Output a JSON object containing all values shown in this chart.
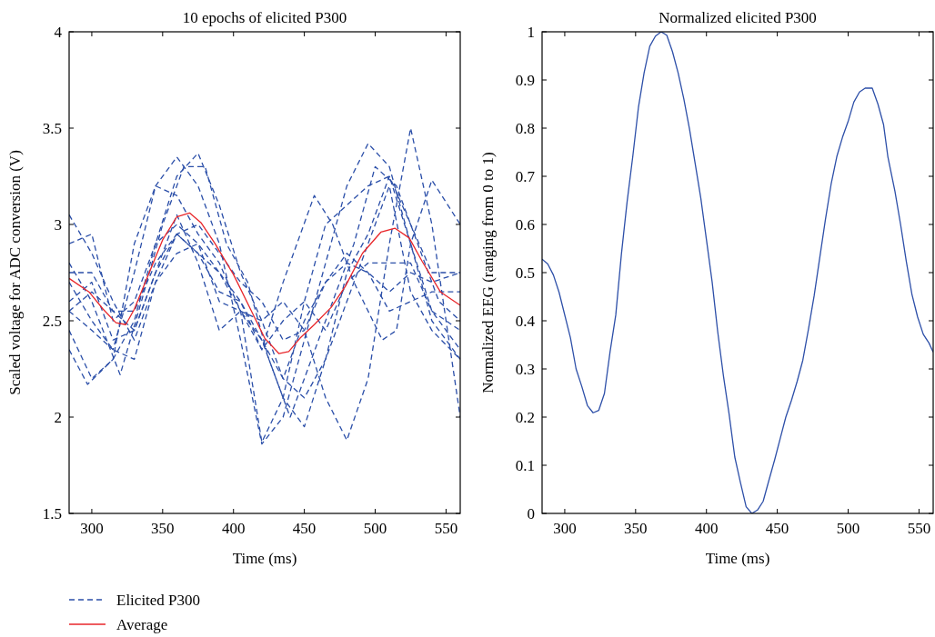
{
  "chart_data": [
    {
      "type": "line",
      "title": "10 epochs of elicited P300",
      "xlabel": "Time (ms)",
      "ylabel": "Scaled voltage for ADC conversion (V)",
      "xlim": [
        284,
        560
      ],
      "ylim": [
        1.5,
        4
      ],
      "xticks": [
        300,
        350,
        400,
        450,
        500,
        550
      ],
      "yticks": [
        1.5,
        2,
        2.5,
        3,
        3.5,
        4
      ],
      "grid": false,
      "legend": "bottom left",
      "series": [
        {
          "name": "Elicited P300",
          "color": "#2a4ea8",
          "line_style": "dashed",
          "x": [
            284,
            300,
            315,
            330,
            345,
            360,
            375,
            390,
            405,
            420,
            435,
            450,
            465,
            480,
            495,
            510,
            525,
            540,
            560
          ],
          "values": [
            2.55,
            2.45,
            2.35,
            2.75,
            3.2,
            3.35,
            3.2,
            2.9,
            2.4,
            1.86,
            2.0,
            2.4,
            2.8,
            3.2,
            3.42,
            3.3,
            2.9,
            2.55,
            2.35
          ]
        },
        {
          "color": "#2a4ea8",
          "line_style": "dashed",
          "x": [
            284,
            300,
            315,
            330,
            345,
            360,
            375,
            390,
            405,
            420,
            435,
            450,
            465,
            480,
            495,
            510,
            525,
            540,
            560
          ],
          "values": [
            2.45,
            2.2,
            2.3,
            2.5,
            2.9,
            3.25,
            3.37,
            3.1,
            2.75,
            2.5,
            2.6,
            2.45,
            2.1,
            1.88,
            2.2,
            2.9,
            3.5,
            3.0,
            2.0
          ]
        },
        {
          "color": "#2a4ea8",
          "line_style": "dashed",
          "x": [
            284,
            297,
            315,
            330,
            345,
            360,
            375,
            390,
            405,
            420,
            435,
            450,
            465,
            480,
            495,
            510,
            525,
            540,
            560
          ],
          "values": [
            2.35,
            2.17,
            2.3,
            2.9,
            3.2,
            3.15,
            2.95,
            2.8,
            2.55,
            1.87,
            2.1,
            2.6,
            3.0,
            3.1,
            3.2,
            3.25,
            2.9,
            2.5,
            2.3
          ]
        },
        {
          "color": "#2a4ea8",
          "line_style": "dashed",
          "x": [
            284,
            300,
            315,
            330,
            345,
            360,
            375,
            390,
            405,
            420,
            435,
            457,
            470,
            485,
            505,
            515,
            525,
            540,
            560
          ],
          "values": [
            2.9,
            2.95,
            2.5,
            2.6,
            2.9,
            3.0,
            2.9,
            2.75,
            2.55,
            2.35,
            2.7,
            3.15,
            3.0,
            2.7,
            2.4,
            2.45,
            2.9,
            3.23,
            3.0
          ]
        },
        {
          "color": "#2a4ea8",
          "line_style": "dashed",
          "x": [
            284,
            300,
            320,
            335,
            350,
            365,
            380,
            395,
            410,
            425,
            440,
            455,
            470,
            485,
            500,
            515,
            530,
            545,
            560
          ],
          "values": [
            2.8,
            2.6,
            2.22,
            2.6,
            3.0,
            3.3,
            3.3,
            2.9,
            2.7,
            2.3,
            2.0,
            2.3,
            2.6,
            2.9,
            3.3,
            3.2,
            2.9,
            2.6,
            2.5
          ]
        },
        {
          "color": "#2a4ea8",
          "line_style": "dashed",
          "x": [
            284,
            300,
            315,
            330,
            345,
            360,
            375,
            390,
            405,
            420,
            435,
            450,
            465,
            480,
            495,
            510,
            525,
            540,
            560
          ],
          "values": [
            3.05,
            2.85,
            2.6,
            2.4,
            2.7,
            2.95,
            2.85,
            2.65,
            2.6,
            2.4,
            2.1,
            1.95,
            2.3,
            2.75,
            2.95,
            3.25,
            3.0,
            2.75,
            2.75
          ]
        },
        {
          "color": "#2a4ea8",
          "line_style": "dashed",
          "x": [
            284,
            300,
            315,
            330,
            345,
            360,
            375,
            390,
            405,
            420,
            435,
            450,
            465,
            480,
            495,
            510,
            525,
            540,
            560
          ],
          "values": [
            2.6,
            2.7,
            2.4,
            2.45,
            2.75,
            2.95,
            3.0,
            2.85,
            2.7,
            2.6,
            2.4,
            2.45,
            2.7,
            2.8,
            2.75,
            2.65,
            2.75,
            2.7,
            2.75
          ]
        },
        {
          "color": "#2a4ea8",
          "line_style": "dashed",
          "x": [
            284,
            300,
            315,
            330,
            345,
            360,
            375,
            390,
            405,
            420,
            435,
            450,
            465,
            480,
            495,
            510,
            525,
            540,
            560
          ],
          "values": [
            2.7,
            2.5,
            2.35,
            2.3,
            2.7,
            2.85,
            2.9,
            2.6,
            2.55,
            2.5,
            2.2,
            2.1,
            2.3,
            2.6,
            2.9,
            3.2,
            2.65,
            2.45,
            2.3
          ]
        },
        {
          "color": "#2a4ea8",
          "line_style": "dashed",
          "x": [
            284,
            300,
            315,
            330,
            345,
            360,
            375,
            390,
            405,
            420,
            435,
            450,
            465,
            480,
            495,
            510,
            525,
            540,
            560
          ],
          "values": [
            2.75,
            2.75,
            2.55,
            2.45,
            2.75,
            3.05,
            2.8,
            2.45,
            2.55,
            2.4,
            2.2,
            2.5,
            2.7,
            2.85,
            2.75,
            2.55,
            2.6,
            2.65,
            2.65
          ]
        },
        {
          "color": "#2a4ea8",
          "line_style": "dashed",
          "x": [
            284,
            300,
            315,
            330,
            345,
            360,
            375,
            390,
            405,
            420,
            435,
            450,
            465,
            480,
            495,
            510,
            525,
            540,
            560
          ],
          "values": [
            2.55,
            2.65,
            2.55,
            2.55,
            2.8,
            2.95,
            2.85,
            2.75,
            2.6,
            2.35,
            2.5,
            2.6,
            2.45,
            2.7,
            2.8,
            2.8,
            2.8,
            2.55,
            2.45
          ]
        },
        {
          "name": "Average",
          "color": "#e8262a",
          "line_style": "solid",
          "x": [
            284,
            298,
            308,
            317,
            324,
            330,
            340,
            350,
            360,
            369,
            377,
            387,
            400,
            412,
            422,
            432,
            439,
            447,
            457,
            469,
            479,
            491,
            504,
            514,
            524,
            533,
            546,
            560
          ],
          "values": [
            2.72,
            2.65,
            2.56,
            2.49,
            2.48,
            2.56,
            2.74,
            2.92,
            3.04,
            3.06,
            3.01,
            2.9,
            2.74,
            2.56,
            2.41,
            2.33,
            2.34,
            2.41,
            2.48,
            2.57,
            2.68,
            2.85,
            2.96,
            2.98,
            2.93,
            2.81,
            2.65,
            2.58
          ]
        }
      ]
    },
    {
      "type": "line",
      "title": "Normalized elicited P300",
      "xlabel": "Time (ms)",
      "ylabel": "Normalized EEG (ranging from 0 to 1)",
      "xlim": [
        284,
        560
      ],
      "ylim": [
        0,
        1
      ],
      "xticks": [
        300,
        350,
        400,
        450,
        500,
        550
      ],
      "yticks": [
        0,
        0.1,
        0.2,
        0.3,
        0.4,
        0.5,
        0.6,
        0.7,
        0.8,
        0.9,
        1
      ],
      "grid": false,
      "series": [
        {
          "color": "#2d4fa8",
          "line_style": "solid",
          "x": [
            284,
            288,
            292,
            296,
            304,
            308,
            312,
            316,
            320,
            324,
            328,
            332,
            336,
            340,
            344,
            348,
            352,
            356,
            360,
            364,
            368,
            372,
            376,
            380,
            384,
            388,
            392,
            396,
            400,
            404,
            408,
            412,
            416,
            420,
            424,
            428,
            432,
            436,
            440,
            444,
            448,
            452,
            456,
            460,
            464,
            468,
            472,
            476,
            480,
            484,
            488,
            492,
            496,
            500,
            504,
            508,
            512,
            517,
            521,
            525,
            528,
            533,
            537,
            541,
            545,
            549,
            553,
            557,
            560
          ],
          "values": [
            0.528,
            0.518,
            0.495,
            0.459,
            0.365,
            0.3,
            0.264,
            0.224,
            0.209,
            0.214,
            0.249,
            0.336,
            0.412,
            0.539,
            0.647,
            0.741,
            0.843,
            0.915,
            0.97,
            0.991,
            1.0,
            0.993,
            0.959,
            0.915,
            0.861,
            0.799,
            0.727,
            0.655,
            0.568,
            0.481,
            0.376,
            0.285,
            0.206,
            0.117,
            0.064,
            0.014,
            0,
            0.007,
            0.025,
            0.068,
            0.11,
            0.155,
            0.2,
            0.235,
            0.274,
            0.318,
            0.383,
            0.452,
            0.532,
            0.611,
            0.684,
            0.741,
            0.781,
            0.814,
            0.854,
            0.875,
            0.883,
            0.883,
            0.85,
            0.807,
            0.741,
            0.669,
            0.6,
            0.524,
            0.455,
            0.408,
            0.372,
            0.354,
            0.335
          ]
        }
      ]
    }
  ]
}
